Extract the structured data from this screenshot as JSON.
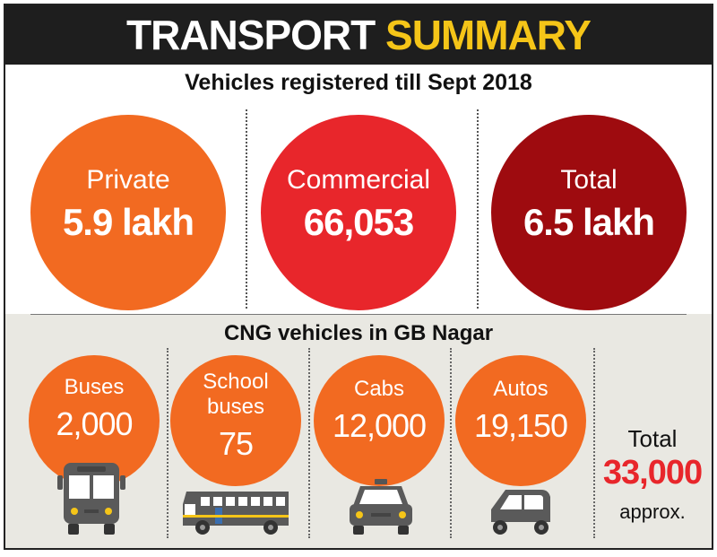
{
  "header": {
    "title_part1": "TRANSPORT",
    "title_part2": "SUMMARY",
    "accent_color": "#f5c518"
  },
  "registered": {
    "heading": "Vehicles registered till Sept 2018",
    "items": [
      {
        "label": "Private",
        "value": "5.9 lakh",
        "color": "#f26a21"
      },
      {
        "label": "Commercial",
        "value": "66,053",
        "color": "#e8262b"
      },
      {
        "label": "Total",
        "value": "6.5 lakh",
        "color": "#9e0b0f"
      }
    ]
  },
  "cng": {
    "heading": "CNG vehicles in GB Nagar",
    "items": [
      {
        "label": "Buses",
        "value": "2,000",
        "icon": "bus-icon"
      },
      {
        "label_line1": "School",
        "label_line2": "buses",
        "value": "75",
        "icon": "school-bus-icon"
      },
      {
        "label": "Cabs",
        "value": "12,000",
        "icon": "cab-icon"
      },
      {
        "label": "Autos",
        "value": "19,150",
        "icon": "auto-rickshaw-icon"
      }
    ],
    "total": {
      "label": "Total",
      "value": "33,000",
      "suffix": "approx.",
      "color": "#e8262b"
    }
  }
}
